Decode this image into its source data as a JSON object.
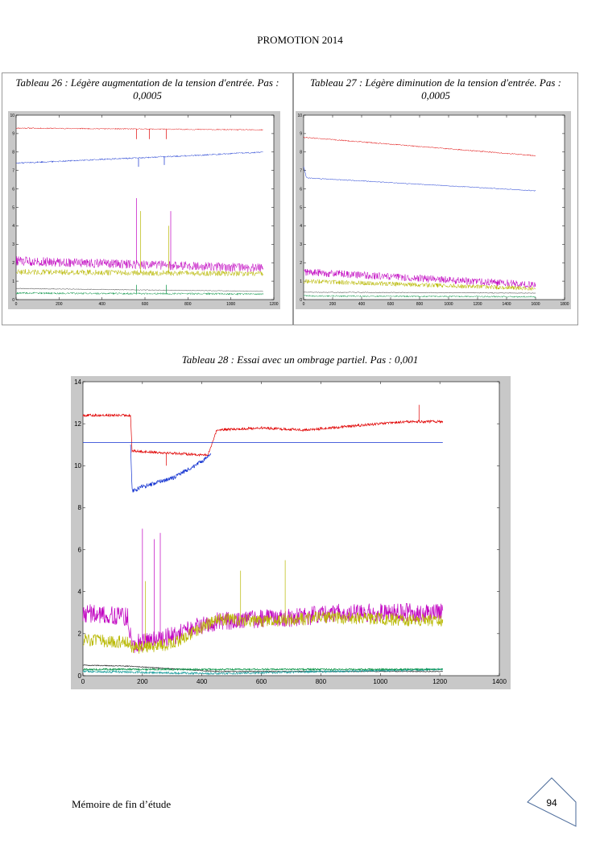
{
  "header": {
    "title": "PROMOTION 2014"
  },
  "captions": {
    "t26": "Tableau 26 : Légère augmentation de la tension d'entrée. Pas : 0,0005",
    "t27": "Tableau 27 : Légère diminution de la tension d'entrée. Pas : 0,0005",
    "t28": "Tableau 28 : Essai avec un ombrage partiel. Pas : 0,001"
  },
  "footer": {
    "text": "Mémoire de fin d’étude",
    "page_number": "94"
  },
  "colors": {
    "red": "#e00000",
    "blue": "#1030d0",
    "magenta": "#c000c0",
    "yellow": "#b8b800",
    "green": "#009040",
    "teal": "#20a0a0",
    "black": "#303030",
    "frame": "#c8c8c8"
  },
  "chart_data": [
    {
      "type": "line",
      "title": "",
      "xlabel": "",
      "ylabel": "",
      "xlim": [
        0,
        1200
      ],
      "ylim": [
        0,
        10
      ],
      "xticks": [
        0,
        200,
        400,
        600,
        800,
        1000,
        1200
      ],
      "yticks": [
        0,
        1,
        2,
        3,
        4,
        5,
        6,
        7,
        8,
        9,
        10
      ],
      "series": [
        {
          "color": "red",
          "x": [
            0,
            1150
          ],
          "y": [
            9.3,
            9.2
          ],
          "noise": 0.03,
          "spikes": [
            [
              560,
              8.7
            ],
            [
              620,
              8.7
            ],
            [
              700,
              8.7
            ]
          ]
        },
        {
          "color": "blue",
          "x": [
            0,
            300,
            600,
            800,
            1150
          ],
          "y": [
            7.4,
            7.55,
            7.7,
            7.8,
            8.0
          ],
          "noise": 0.04,
          "spikes": [
            [
              570,
              7.2
            ],
            [
              690,
              7.3
            ]
          ]
        },
        {
          "color": "magenta",
          "x": [
            0,
            1150
          ],
          "y": [
            2.1,
            1.7
          ],
          "noise": 0.25,
          "spikes": [
            [
              560,
              5.5
            ],
            [
              720,
              4.8
            ]
          ]
        },
        {
          "color": "yellow",
          "x": [
            0,
            1150
          ],
          "y": [
            1.5,
            1.4
          ],
          "noise": 0.15,
          "spikes": [
            [
              580,
              4.8
            ],
            [
              710,
              4.0
            ]
          ]
        },
        {
          "color": "black",
          "x": [
            0,
            1150
          ],
          "y": [
            0.6,
            0.45
          ],
          "noise": 0.02,
          "spikes": []
        },
        {
          "color": "green",
          "x": [
            0,
            1150
          ],
          "y": [
            0.35,
            0.3
          ],
          "noise": 0.05,
          "spikes": [
            [
              560,
              0.8
            ],
            [
              700,
              0.8
            ]
          ]
        }
      ]
    },
    {
      "type": "line",
      "title": "",
      "xlabel": "",
      "ylabel": "",
      "xlim": [
        0,
        1800
      ],
      "ylim": [
        0,
        10
      ],
      "xticks": [
        0,
        200,
        400,
        600,
        800,
        1000,
        1200,
        1400,
        1600,
        1800
      ],
      "yticks": [
        0,
        1,
        2,
        3,
        4,
        5,
        6,
        7,
        8,
        9,
        10
      ],
      "series": [
        {
          "color": "red",
          "x": [
            0,
            1600
          ],
          "y": [
            8.8,
            7.8
          ],
          "noise": 0.03,
          "spikes": []
        },
        {
          "color": "blue",
          "x": [
            0,
            20,
            1600
          ],
          "y": [
            7.2,
            6.6,
            5.9
          ],
          "noise": 0.02,
          "spikes": []
        },
        {
          "color": "magenta",
          "x": [
            0,
            1600
          ],
          "y": [
            1.5,
            0.8
          ],
          "noise": 0.2,
          "spikes": []
        },
        {
          "color": "yellow",
          "x": [
            0,
            1600
          ],
          "y": [
            1.0,
            0.6
          ],
          "noise": 0.12,
          "spikes": []
        },
        {
          "color": "black",
          "x": [
            0,
            1600
          ],
          "y": [
            0.4,
            0.35
          ],
          "noise": 0.02,
          "spikes": []
        },
        {
          "color": "green",
          "x": [
            0,
            1600
          ],
          "y": [
            0.2,
            0.15
          ],
          "noise": 0.04,
          "spikes": []
        }
      ]
    },
    {
      "type": "line",
      "title": "",
      "xlabel": "",
      "ylabel": "",
      "xlim": [
        0,
        1400
      ],
      "ylim": [
        0,
        14
      ],
      "xticks": [
        0,
        200,
        400,
        600,
        800,
        1000,
        1200,
        1400
      ],
      "yticks": [
        0,
        2,
        4,
        6,
        8,
        10,
        12,
        14
      ],
      "series": [
        {
          "color": "red",
          "x": [
            0,
            160,
            165,
            300,
            420,
            450,
            600,
            750,
            1000,
            1100,
            1210
          ],
          "y": [
            12.4,
            12.4,
            10.7,
            10.6,
            10.5,
            11.7,
            11.8,
            11.7,
            12.0,
            12.1,
            12.1
          ],
          "noise": 0.06,
          "spikes": [
            [
              280,
              10.0
            ],
            [
              1130,
              12.9
            ]
          ]
        },
        {
          "color": "blue",
          "x": [
            0,
            1210
          ],
          "y": [
            11.1,
            11.1
          ],
          "noise": 0.0,
          "spikes": []
        },
        {
          "color": "blue",
          "x": [
            160,
            165,
            200,
            300,
            400,
            430
          ],
          "y": [
            11.1,
            8.8,
            9.0,
            9.4,
            10.2,
            10.5
          ],
          "noise": 0.1,
          "spikes": []
        },
        {
          "color": "magenta",
          "x": [
            0,
            150,
            165,
            300,
            450,
            600,
            750,
            800,
            1210
          ],
          "y": [
            3.0,
            2.8,
            1.5,
            1.9,
            2.6,
            2.7,
            2.8,
            3.0,
            3.0
          ],
          "noise": 0.45,
          "spikes": [
            [
              200,
              7.0
            ],
            [
              240,
              6.5
            ],
            [
              260,
              6.8
            ]
          ]
        },
        {
          "color": "yellow",
          "x": [
            0,
            150,
            165,
            300,
            450,
            600,
            750,
            800,
            1210
          ],
          "y": [
            1.7,
            1.6,
            1.3,
            1.5,
            2.7,
            2.6,
            2.7,
            2.8,
            2.6
          ],
          "noise": 0.3,
          "spikes": [
            [
              210,
              4.5
            ],
            [
              530,
              5.0
            ],
            [
              680,
              5.5
            ]
          ]
        },
        {
          "color": "black",
          "x": [
            0,
            160,
            450,
            1210
          ],
          "y": [
            0.5,
            0.45,
            0.2,
            0.2
          ],
          "noise": 0.02,
          "spikes": []
        },
        {
          "color": "teal",
          "x": [
            0,
            450,
            1210
          ],
          "y": [
            0.2,
            0.1,
            0.3
          ],
          "noise": 0.05,
          "spikes": []
        },
        {
          "color": "green",
          "x": [
            0,
            1210
          ],
          "y": [
            0.3,
            0.3
          ],
          "noise": 0.04,
          "spikes": []
        }
      ]
    }
  ]
}
